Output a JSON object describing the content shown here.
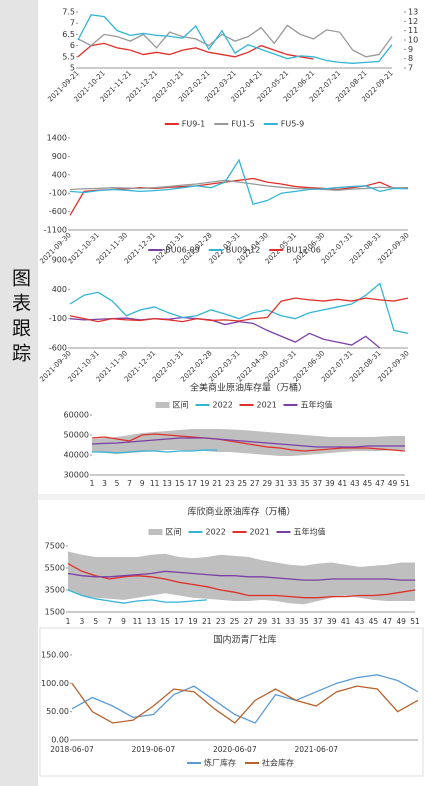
{
  "side_label": "图表跟踪",
  "chart_data": [
    {
      "type": "line",
      "categories": [
        "2021-09-21",
        null,
        "2021-10-21",
        null,
        "2021-11-21",
        null,
        "2021-12-21",
        null,
        "2022-01-21",
        null,
        "2022-02-21",
        null,
        "2022-03-21",
        null,
        "2022-04-21",
        null,
        "2022-05-21",
        null,
        "2022-06-21",
        null,
        "2022-07-21",
        null,
        "2022-08-21",
        null,
        "2022-09-21"
      ],
      "series": [
        {
          "color": "#e0302a",
          "values": [
            5.5,
            6.0,
            6.1,
            5.9,
            5.8,
            5.6,
            5.7,
            5.6,
            5.8,
            5.9,
            5.7,
            5.6,
            5.5,
            5.7,
            6.0,
            5.8,
            5.6,
            5.5,
            5.4,
            null,
            null,
            null,
            null,
            null,
            null
          ]
        },
        {
          "color": "#999999",
          "values": [
            6.3,
            6.0,
            6.5,
            6.4,
            6.2,
            6.5,
            5.9,
            6.6,
            6.4,
            6.3,
            6.0,
            6.5,
            6.2,
            6.4,
            6.8,
            6.1,
            6.9,
            6.5,
            6.3,
            6.7,
            6.6,
            5.8,
            5.5,
            5.6,
            6.4
          ]
        },
        {
          "color": "#33b5d6",
          "axis": "y2",
          "values": [
            10,
            12.7,
            12.5,
            11,
            10.5,
            10.7,
            10.5,
            10.4,
            10.2,
            11.5,
            9,
            11,
            8.6,
            9.5,
            9,
            8.5,
            8,
            8.3,
            8.2,
            7.8,
            7.6,
            7.5,
            7.6,
            7.7,
            9.5
          ]
        }
      ],
      "ylim": [
        5,
        7.5
      ],
      "yticks": [
        5,
        5.5,
        6,
        6.5,
        7,
        7.5
      ],
      "y2lim": [
        7,
        13
      ],
      "y2ticks": [
        7,
        8,
        9,
        10,
        11,
        12,
        13
      ]
    },
    {
      "type": "line",
      "categories": [
        "2021-09-30",
        null,
        "2021-10-31",
        null,
        "2021-11-30",
        null,
        "2021-12-31",
        null,
        "2022-01-31",
        null,
        "2022-02-28",
        null,
        "2022-03-31",
        null,
        "2022-04-30",
        null,
        "2022-05-31",
        null,
        "2022-06-30",
        null,
        "2022-07-31",
        null,
        "2022-08-31",
        null,
        "2022-09-30"
      ],
      "series": [
        {
          "name": "FU9-1",
          "color": "#e0302a",
          "values": [
            -700,
            -50,
            -20,
            0,
            20,
            50,
            30,
            60,
            80,
            100,
            150,
            200,
            250,
            300,
            200,
            150,
            80,
            50,
            30,
            0,
            50,
            100,
            200,
            30,
            50
          ]
        },
        {
          "name": "FU1-5",
          "color": "#999999",
          "values": [
            0,
            20,
            30,
            50,
            40,
            30,
            50,
            80,
            120,
            150,
            200,
            250,
            200,
            150,
            100,
            60,
            30,
            20,
            0,
            -20,
            10,
            30,
            60,
            50,
            40
          ]
        },
        {
          "name": "FU5-9",
          "color": "#33b5d6",
          "values": [
            -50,
            -80,
            -30,
            0,
            -20,
            -50,
            -30,
            0,
            50,
            100,
            50,
            200,
            800,
            -400,
            -300,
            -100,
            -50,
            0,
            20,
            50,
            80,
            100,
            -50,
            30,
            20
          ]
        }
      ],
      "ylim": [
        -1100,
        1400
      ],
      "yticks": [
        -1100,
        -600,
        -100,
        400,
        900,
        1400
      ]
    },
    {
      "type": "line",
      "categories": [
        "2021-09-30",
        null,
        "2021-10-31",
        null,
        "2021-11-30",
        null,
        "2021-12-31",
        null,
        "2022-01-31",
        null,
        "2022-02-28",
        null,
        "2022-03-31",
        null,
        "2022-04-30",
        null,
        "2022-05-31",
        null,
        "2022-06-30",
        null,
        "2022-07-31",
        null,
        "2022-08-31",
        null,
        "2022-09-30"
      ],
      "series": [
        {
          "name": "BU06-09",
          "color": "#7b3fa6",
          "values": [
            -100,
            -120,
            -110,
            -100,
            -90,
            -120,
            -100,
            -110,
            -80,
            -100,
            -120,
            -200,
            -150,
            -180,
            -300,
            -400,
            -500,
            -350,
            -450,
            -500,
            -550,
            -400,
            -600,
            null,
            null
          ]
        },
        {
          "name": "BU09-12",
          "color": "#33b5d6",
          "values": [
            150,
            300,
            350,
            200,
            -50,
            50,
            100,
            0,
            -80,
            -50,
            50,
            -20,
            -100,
            0,
            50,
            -50,
            -100,
            0,
            50,
            100,
            150,
            300,
            500,
            -300,
            -350
          ]
        },
        {
          "name": "BU12-06",
          "color": "#e0302a",
          "values": [
            -50,
            -100,
            -150,
            -100,
            -120,
            -130,
            -100,
            -120,
            -150,
            -100,
            -130,
            -120,
            -140,
            -100,
            -80,
            200,
            250,
            220,
            200,
            230,
            200,
            250,
            220,
            200,
            250
          ]
        }
      ],
      "ylim": [
        -600,
        900
      ],
      "yticks": [
        -600,
        -100,
        400,
        900
      ]
    },
    {
      "type": "line",
      "title": "全美商业原油库存量（万桶）",
      "categories": [
        1,
        3,
        5,
        7,
        9,
        11,
        13,
        15,
        17,
        19,
        21,
        23,
        25,
        27,
        29,
        31,
        33,
        35,
        37,
        39,
        41,
        43,
        45,
        47,
        49,
        51
      ],
      "series": [
        {
          "name": "区间",
          "color": "#bfbfbf",
          "band": true,
          "upper": [
            48000,
            48500,
            49000,
            50000,
            51000,
            51500,
            52000,
            52500,
            53000,
            53000,
            53000,
            52800,
            52500,
            52000,
            51500,
            51000,
            50500,
            50000,
            49500,
            49000,
            49000,
            49000,
            49000,
            49200,
            49500,
            49500
          ],
          "lower": [
            41500,
            41000,
            40500,
            41000,
            41500,
            42000,
            42500,
            42500,
            42000,
            42000,
            41500,
            41500,
            41000,
            40500,
            40000,
            39500,
            39500,
            40000,
            40500,
            41000,
            41500,
            42000,
            42000,
            42000,
            42500,
            42500
          ]
        },
        {
          "name": "2022",
          "color": "#33b5d6",
          "values": [
            41500,
            41500,
            41000,
            41500,
            42000,
            42000,
            41500,
            42000,
            42000,
            42500,
            42500,
            null,
            null,
            null,
            null,
            null,
            null,
            null,
            null,
            null,
            null,
            null,
            null,
            null,
            null,
            null
          ]
        },
        {
          "name": "2021",
          "color": "#e0302a",
          "values": [
            48500,
            49000,
            48000,
            47000,
            50000,
            50500,
            50000,
            49500,
            49000,
            48500,
            48000,
            47000,
            46000,
            45000,
            44000,
            43500,
            42500,
            42000,
            42500,
            43000,
            43500,
            43500,
            43500,
            43000,
            42500,
            42000
          ]
        },
        {
          "name": "五年均值",
          "color": "#7b3fa6",
          "values": [
            45500,
            45800,
            46000,
            46500,
            47000,
            47500,
            48000,
            48500,
            48500,
            48500,
            48000,
            47500,
            47000,
            46500,
            46000,
            45500,
            45000,
            44500,
            44000,
            44000,
            44000,
            44000,
            44500,
            44500,
            44500,
            44500
          ]
        }
      ],
      "ylim": [
        30000,
        60000
      ],
      "yticks": [
        30000,
        40000,
        50000,
        60000
      ]
    },
    {
      "type": "line",
      "title": "库欣商业原油库存（万桶）",
      "categories": [
        1,
        3,
        5,
        7,
        9,
        11,
        13,
        15,
        17,
        19,
        21,
        23,
        25,
        27,
        29,
        31,
        33,
        35,
        37,
        39,
        41,
        43,
        45,
        47,
        49,
        51
      ],
      "series": [
        {
          "name": "区间",
          "color": "#bfbfbf",
          "band": true,
          "upper": [
            7000,
            6700,
            6500,
            6500,
            6500,
            6500,
            6700,
            6800,
            6500,
            6400,
            6500,
            6700,
            6600,
            6500,
            6200,
            6000,
            5800,
            5700,
            5900,
            6000,
            5800,
            5600,
            5700,
            5800,
            6000,
            6000
          ],
          "lower": [
            3500,
            3000,
            2800,
            2700,
            2600,
            2800,
            3000,
            3200,
            3000,
            2800,
            2700,
            2600,
            2500,
            2500,
            2600,
            2500,
            2300,
            2200,
            2500,
            2800,
            3000,
            2800,
            2600,
            2500,
            2500,
            2500
          ]
        },
        {
          "name": "2022",
          "color": "#33b5d6",
          "values": [
            3500,
            3000,
            2700,
            2500,
            2300,
            2500,
            2600,
            2400,
            2400,
            2500,
            2600,
            null,
            null,
            null,
            null,
            null,
            null,
            null,
            null,
            null,
            null,
            null,
            null,
            null,
            null,
            null
          ]
        },
        {
          "name": "2021",
          "color": "#e0302a",
          "values": [
            5900,
            5200,
            4800,
            4500,
            4700,
            4800,
            4700,
            4500,
            4200,
            4000,
            3800,
            3500,
            3300,
            3000,
            3000,
            3000,
            2900,
            2800,
            2800,
            2900,
            2900,
            3000,
            3000,
            3100,
            3300,
            3500
          ]
        },
        {
          "name": "五年均值",
          "color": "#7b3fa6",
          "values": [
            5000,
            4800,
            4700,
            4700,
            4800,
            4900,
            5000,
            5200,
            5100,
            5000,
            4900,
            4800,
            4800,
            4700,
            4700,
            4600,
            4500,
            4400,
            4400,
            4500,
            4500,
            4500,
            4500,
            4500,
            4400,
            4400
          ]
        }
      ],
      "ylim": [
        1500,
        7500
      ],
      "yticks": [
        1500,
        3500,
        5500,
        7500
      ]
    },
    {
      "type": "line",
      "title": "国内沥青厂社库",
      "categories": [
        "2018-06-07",
        null,
        null,
        null,
        "2019-06-07",
        null,
        null,
        null,
        "2020-06-07",
        null,
        null,
        null,
        "2021-06-07",
        null,
        null,
        null,
        null,
        null
      ],
      "series": [
        {
          "name": "炼厂库存",
          "color": "#5b9bd5",
          "values": [
            55,
            75,
            60,
            40,
            45,
            80,
            95,
            70,
            45,
            30,
            80,
            70,
            85,
            100,
            110,
            115,
            105,
            85
          ]
        },
        {
          "name": "社会库存",
          "color": "#b8622c",
          "values": [
            100,
            50,
            30,
            35,
            60,
            90,
            85,
            55,
            30,
            70,
            90,
            70,
            60,
            85,
            95,
            90,
            50,
            70
          ]
        }
      ],
      "ylim": [
        0,
        150
      ],
      "yticks": [
        {
          "value": 0,
          "label": "0.00"
        },
        {
          "value": 50,
          "label": "50.00"
        },
        {
          "value": 100,
          "label": "100.00"
        },
        {
          "value": 150,
          "label": "150.00"
        }
      ]
    }
  ]
}
